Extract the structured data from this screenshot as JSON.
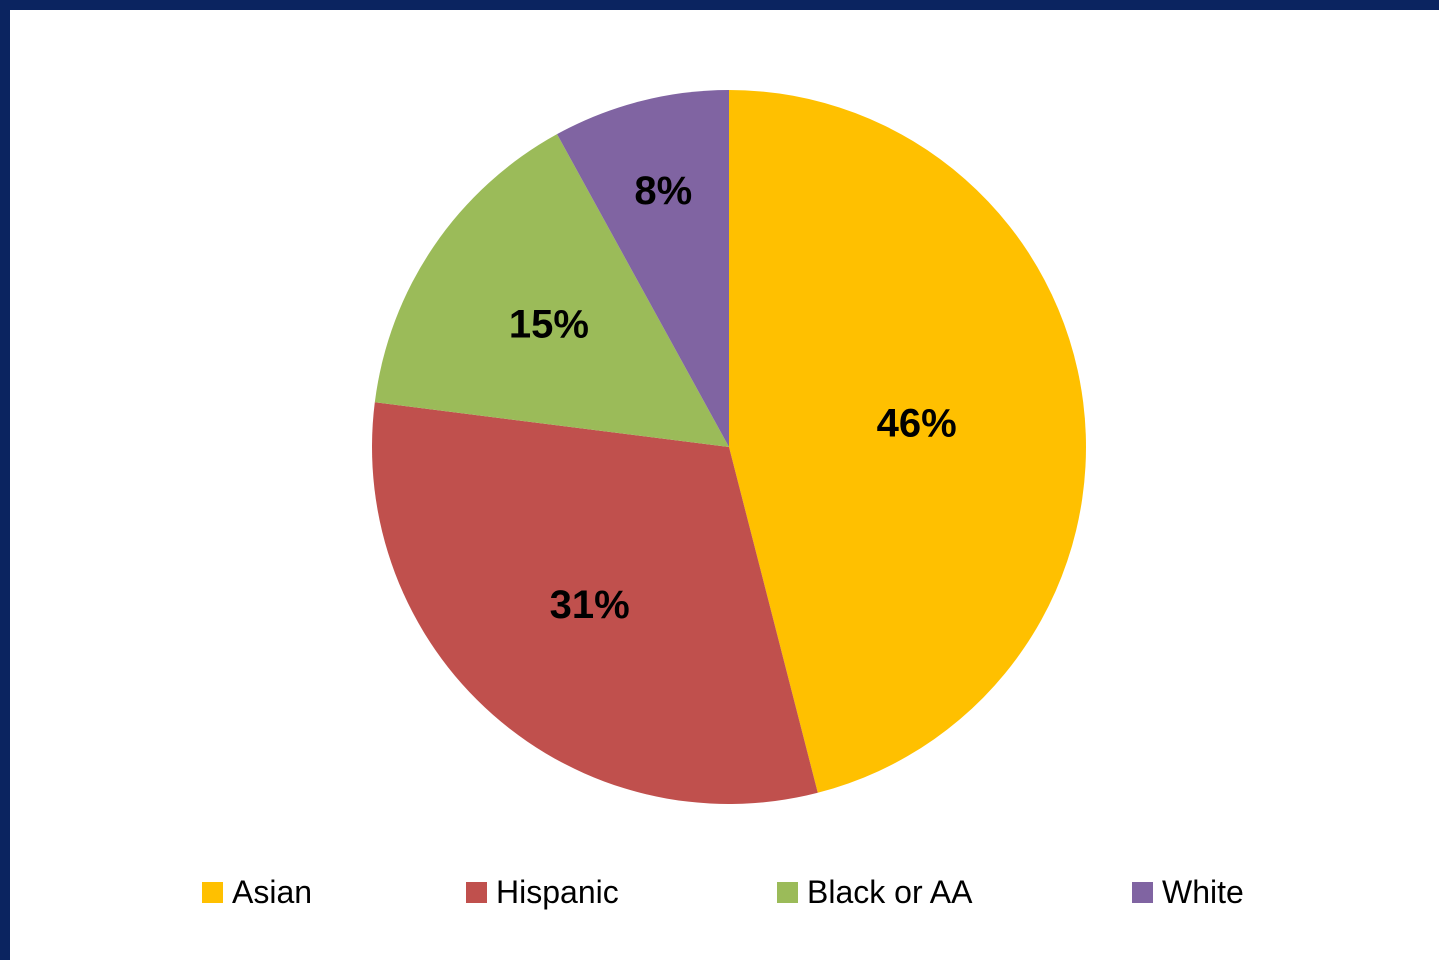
{
  "chart_data": {
    "type": "pie",
    "slices": [
      {
        "label": "Asian",
        "value": 46,
        "color": "#ffc000"
      },
      {
        "label": "Hispanic",
        "value": 31,
        "color": "#c0504d"
      },
      {
        "label": "Black or AA",
        "value": 15,
        "color": "#9bbb59"
      },
      {
        "label": "White",
        "value": 8,
        "color": "#8064a2"
      }
    ],
    "data_labels": [
      "46%",
      "31%",
      "15%",
      "8%"
    ],
    "legend": [
      "Asian",
      "Hispanic",
      "Black or AA",
      "White"
    ],
    "legend_position": "bottom"
  }
}
